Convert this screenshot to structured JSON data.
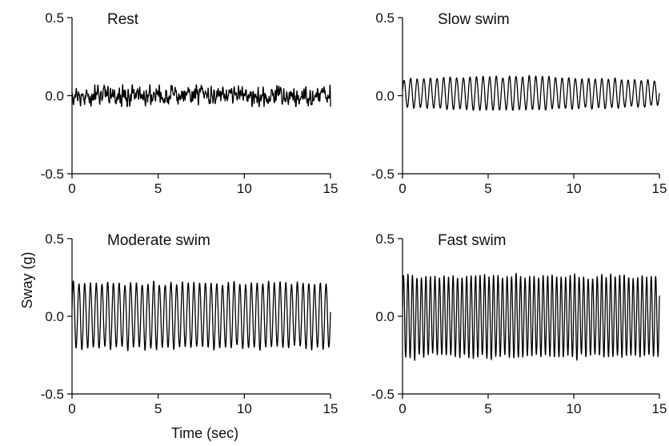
{
  "figure": {
    "ylabel": "Sway (g)",
    "xlabel": "Time (sec)"
  },
  "chart_data": [
    {
      "type": "line",
      "title": "Rest",
      "xlabel": "",
      "ylabel": "",
      "xlim": [
        0,
        15
      ],
      "ylim": [
        -0.5,
        0.5
      ],
      "xticks": [
        "0",
        "5",
        "10",
        "15"
      ],
      "yticks": [
        "-0.5",
        "0.0",
        "0.5"
      ],
      "signal": {
        "amplitude_range_g": [
          -0.07,
          0.07
        ],
        "dominant_frequency_hz": null,
        "description_values_g": {
          "min": -0.07,
          "max": 0.07
        }
      }
    },
    {
      "type": "line",
      "title": "Slow swim",
      "xlabel": "",
      "ylabel": "",
      "xlim": [
        0,
        15
      ],
      "ylim": [
        -0.5,
        0.5
      ],
      "xticks": [
        "0",
        "5",
        "10",
        "15"
      ],
      "yticks": [
        "-0.5",
        "0.0",
        "0.5"
      ],
      "signal": {
        "amplitude_range_g": [
          -0.1,
          0.13
        ],
        "dominant_frequency_hz": 2.6,
        "description_values_g": {
          "min": -0.1,
          "max": 0.13
        }
      }
    },
    {
      "type": "line",
      "title": "Moderate swim",
      "xlabel": "",
      "ylabel": "",
      "xlim": [
        0,
        15
      ],
      "ylim": [
        -0.5,
        0.5
      ],
      "xticks": [
        "0",
        "5",
        "10",
        "15"
      ],
      "yticks": [
        "-0.5",
        "0.0",
        "0.5"
      ],
      "signal": {
        "amplitude_range_g": [
          -0.26,
          0.27
        ],
        "dominant_frequency_hz": 3.0,
        "description_values_g": {
          "min": -0.26,
          "max": 0.27
        }
      }
    },
    {
      "type": "line",
      "title": "Fast swim",
      "xlabel": "",
      "ylabel": "",
      "xlim": [
        0,
        15
      ],
      "ylim": [
        -0.5,
        0.5
      ],
      "xticks": [
        "0",
        "5",
        "10",
        "15"
      ],
      "yticks": [
        "-0.5",
        "0.0",
        "0.5"
      ],
      "signal": {
        "amplitude_range_g": [
          -0.33,
          0.33
        ],
        "dominant_frequency_hz": 3.8,
        "description_values_g": {
          "min": -0.33,
          "max": 0.33
        }
      }
    }
  ]
}
